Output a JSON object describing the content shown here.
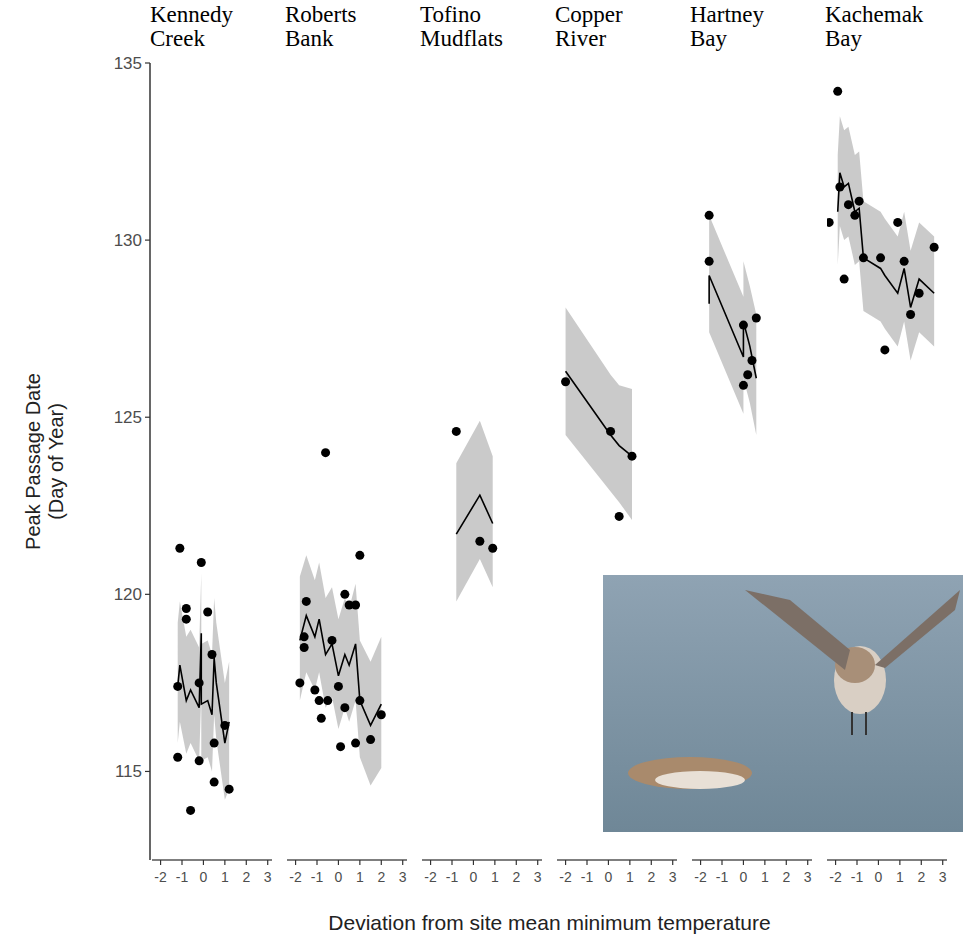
{
  "chart_data": {
    "type": "scatter",
    "x_label": "Deviation from site mean minimum temperature",
    "y_label": "Peak Passage Date\n(Day of Year)",
    "xlim": [
      -2.4,
      3.2
    ],
    "xticks": [
      -2,
      -1,
      0,
      1,
      2,
      3
    ],
    "ylim": [
      112.5,
      135
    ],
    "yticks": [
      115,
      120,
      125,
      130,
      135
    ],
    "grid": false,
    "color": "#000000",
    "marker": "circle",
    "line_style": "solid",
    "panels": [
      {
        "title": "Kennedy Creek",
        "points": {
          "x": [
            -1.2,
            -1.2,
            -1.1,
            -0.8,
            -0.8,
            -0.6,
            -0.2,
            -0.2,
            -0.1,
            0.2,
            0.4,
            0.5,
            0.5,
            1.0,
            1.2
          ],
          "y": [
            115.4,
            117.4,
            121.3,
            119.6,
            119.3,
            113.9,
            117.5,
            115.3,
            120.9,
            119.5,
            118.3,
            115.8,
            114.7,
            116.3,
            114.5
          ]
        },
        "fit": {
          "x": [
            -1.2,
            -1.1,
            -0.8,
            -0.6,
            -0.2,
            -0.1,
            -0.1,
            0.2,
            0.4,
            0.5,
            0.6,
            1.0,
            1.2
          ],
          "y": [
            117.4,
            118.0,
            117.0,
            117.3,
            116.8,
            118.9,
            116.9,
            117.0,
            116.6,
            118.2,
            117.5,
            115.8,
            116.4
          ],
          "lower": [
            115.8,
            116.4,
            115.5,
            115.8,
            115.3,
            117.2,
            115.3,
            115.4,
            115.0,
            116.6,
            115.9,
            114.2,
            114.5
          ],
          "upper": [
            119.2,
            119.8,
            118.8,
            119.0,
            118.5,
            120.6,
            118.6,
            118.7,
            118.3,
            119.9,
            119.2,
            117.5,
            118.1
          ]
        }
      },
      {
        "title": "Roberts Bank",
        "points": {
          "x": [
            -1.8,
            -1.6,
            -1.6,
            -1.5,
            -1.1,
            -0.9,
            -0.8,
            -0.6,
            -0.5,
            -0.3,
            0,
            0.1,
            0.3,
            0.3,
            0.5,
            0.8,
            0.8,
            1.0,
            1.0,
            1.5,
            2.0
          ],
          "y": [
            117.5,
            118.5,
            118.8,
            119.8,
            117.3,
            117.0,
            116.5,
            124.0,
            117.0,
            118.7,
            117.4,
            115.7,
            116.8,
            120.0,
            119.7,
            119.7,
            115.8,
            121.1,
            117.0,
            115.9,
            116.6
          ]
        },
        "fit": {
          "x": [
            -1.8,
            -1.5,
            -1.1,
            -0.9,
            -0.6,
            -0.3,
            0,
            0.3,
            0.5,
            0.8,
            1.0,
            1.5,
            2.0
          ],
          "y": [
            118.7,
            119.4,
            118.8,
            119.3,
            118.3,
            118.6,
            117.7,
            118.3,
            118.0,
            118.6,
            117.0,
            116.3,
            116.9
          ],
          "lower": [
            117.0,
            117.8,
            117.3,
            117.8,
            116.8,
            117.1,
            116.2,
            116.8,
            116.4,
            117.0,
            115.4,
            114.6,
            115.1
          ],
          "upper": [
            120.5,
            121.1,
            120.4,
            120.9,
            119.9,
            120.2,
            119.3,
            119.9,
            119.6,
            120.3,
            118.7,
            118.1,
            118.8
          ]
        }
      },
      {
        "title": "Tofino Mudflats",
        "points": {
          "x": [
            -0.8,
            0.3,
            0.9
          ],
          "y": [
            124.6,
            121.5,
            121.3
          ]
        },
        "fit": {
          "x": [
            -0.8,
            0.3,
            0.9
          ],
          "y": [
            121.7,
            122.8,
            122.0
          ],
          "lower": [
            119.8,
            121.0,
            120.2
          ],
          "upper": [
            123.7,
            124.9,
            123.9
          ]
        }
      },
      {
        "title": "Copper River",
        "points": {
          "x": [
            -2.0,
            0.1,
            0.5,
            1.1
          ],
          "y": [
            126.0,
            124.6,
            122.2,
            123.9
          ]
        },
        "fit": {
          "x": [
            -2.0,
            0.1,
            0.5,
            1.1
          ],
          "y": [
            126.3,
            124.5,
            124.2,
            123.9
          ],
          "lower": [
            124.5,
            122.9,
            122.6,
            122.1
          ],
          "upper": [
            128.1,
            126.2,
            125.9,
            125.8
          ]
        }
      },
      {
        "title": "Hartney Bay",
        "points": {
          "x": [
            -1.6,
            -1.6,
            0,
            0,
            0.2,
            0.4,
            0.6
          ],
          "y": [
            130.7,
            129.4,
            127.6,
            125.9,
            126.2,
            126.6,
            127.8
          ]
        },
        "fit": {
          "x": [
            -1.6,
            -1.6,
            0,
            0,
            0.3,
            0.6
          ],
          "y": [
            128.2,
            129.0,
            126.7,
            127.7,
            127.0,
            126.1
          ],
          "lower": [
            126.6,
            127.4,
            125.1,
            126.1,
            125.4,
            124.5
          ],
          "upper": [
            129.9,
            130.7,
            128.4,
            129.4,
            128.7,
            127.9
          ]
        }
      },
      {
        "title": "Kachemak Bay",
        "points": {
          "x": [
            -2.3,
            -1.9,
            -1.8,
            -1.6,
            -1.4,
            -1.1,
            -0.9,
            -0.7,
            0.1,
            0.3,
            0.9,
            1.2,
            1.5,
            1.9,
            2.6
          ],
          "y": [
            130.5,
            134.2,
            131.5,
            128.9,
            131.0,
            130.7,
            131.1,
            129.5,
            129.5,
            126.9,
            130.5,
            129.4,
            127.9,
            128.5,
            129.8
          ]
        },
        "fit": {
          "x": [
            -1.9,
            -1.8,
            -1.6,
            -1.4,
            -1.1,
            -0.9,
            -0.7,
            0.1,
            0.3,
            0.9,
            1.2,
            1.5,
            1.9,
            2.6
          ],
          "y": [
            130.8,
            131.9,
            131.5,
            131.6,
            130.8,
            130.9,
            129.5,
            129.2,
            129.0,
            128.5,
            129.2,
            128.1,
            128.9,
            128.5
          ],
          "lower": [
            129.3,
            130.4,
            130.0,
            130.1,
            129.3,
            129.4,
            128.0,
            127.7,
            127.5,
            127.0,
            127.7,
            126.6,
            127.4,
            127.0
          ],
          "upper": [
            132.4,
            133.5,
            133.1,
            133.2,
            132.4,
            132.5,
            131.1,
            130.8,
            130.6,
            130.1,
            130.8,
            129.7,
            130.5,
            130.1
          ]
        }
      }
    ]
  }
}
